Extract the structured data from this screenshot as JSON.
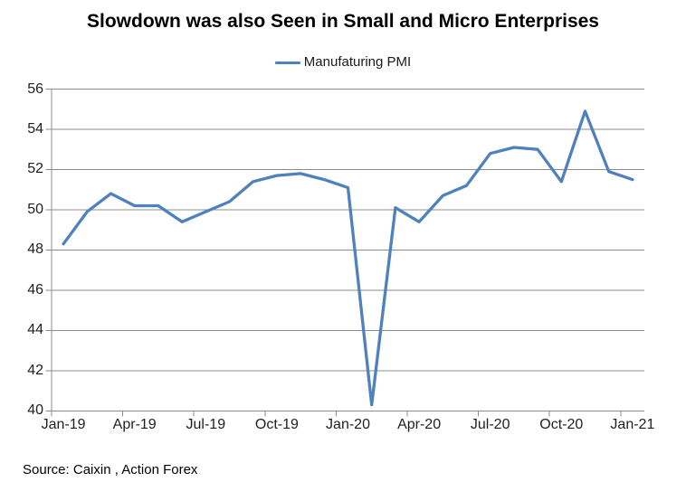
{
  "title": "Slowdown was also Seen in Small and Micro Enterprises",
  "legend": {
    "label": "Manufaturing PMI"
  },
  "source": "Source: Caixin , Action Forex",
  "colors": {
    "line": "#4F81BD",
    "grid": "#8C8C8C",
    "axis": "#8C8C8C",
    "tick": "#8C8C8C",
    "label_text": "#1F1F1F"
  },
  "chart_data": {
    "type": "line",
    "title": "Slowdown was also Seen in Small and Micro Enterprises",
    "series_name": "Manufaturing PMI",
    "x": [
      "Jan-19",
      "Feb-19",
      "Mar-19",
      "Apr-19",
      "May-19",
      "Jun-19",
      "Jul-19",
      "Aug-19",
      "Sep-19",
      "Oct-19",
      "Nov-19",
      "Dec-19",
      "Jan-20",
      "Feb-20",
      "Mar-20",
      "Apr-20",
      "May-20",
      "Jun-20",
      "Jul-20",
      "Aug-20",
      "Sep-20",
      "Oct-20",
      "Nov-20",
      "Dec-20",
      "Jan-21"
    ],
    "values": [
      48.3,
      49.9,
      50.8,
      50.2,
      50.2,
      49.4,
      49.9,
      50.4,
      51.4,
      51.7,
      51.8,
      51.5,
      51.1,
      40.3,
      50.1,
      49.4,
      50.7,
      51.2,
      52.8,
      53.1,
      53.0,
      51.4,
      54.9,
      51.9,
      51.5
    ],
    "ylim": [
      40,
      56
    ],
    "y_ticks": [
      40,
      42,
      44,
      46,
      48,
      50,
      52,
      54,
      56
    ],
    "x_tick_labels": [
      "Jan-19",
      "Apr-19",
      "Jul-19",
      "Oct-19",
      "Jan-20",
      "Apr-20",
      "Jul-20",
      "Oct-20",
      "Jan-21"
    ],
    "x_tick_every": 3,
    "grid": "horizontal-only",
    "legend_position": "top-center",
    "xlabel": "",
    "ylabel": ""
  }
}
